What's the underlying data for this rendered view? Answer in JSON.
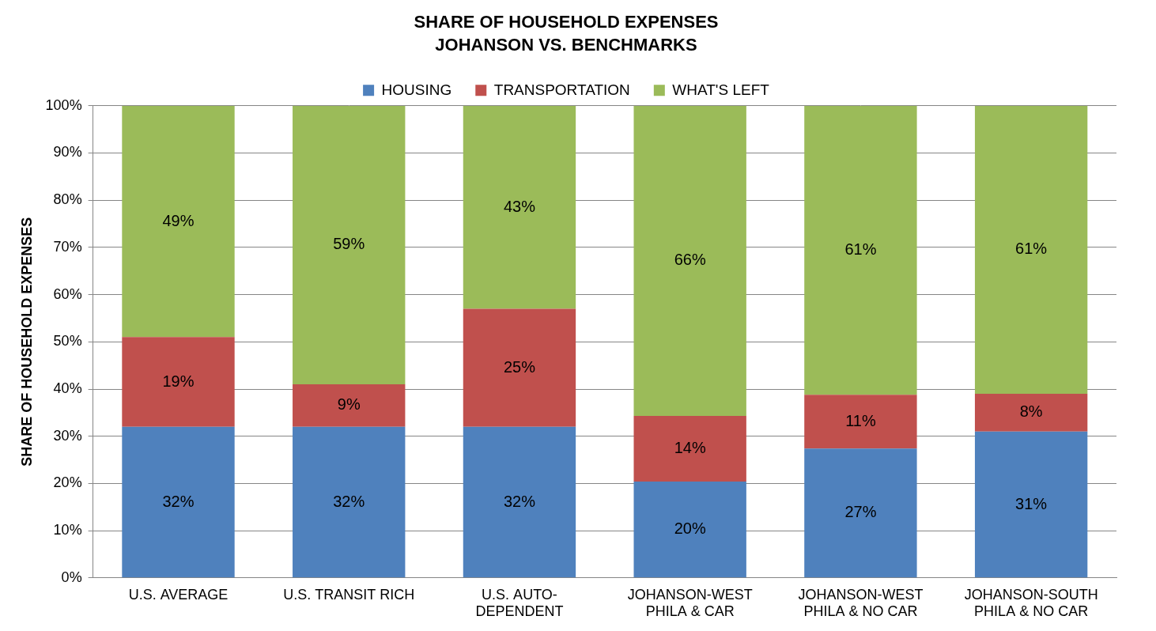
{
  "chart_data": {
    "type": "bar",
    "title": "SHARE OF HOUSEHOLD EXPENSES",
    "subtitle": "JOHANSON VS. BENCHMARKS",
    "y_label": "SHARE OF HOUSEHOLD EXPENSES",
    "categories": [
      "U.S. AVERAGE",
      "U.S. TRANSIT RICH",
      "U.S. AUTO-DEPENDENT",
      "JOHANSON-WEST PHILA & CAR",
      "JOHANSON-WEST PHILA & NO CAR",
      "JOHANSON-SOUTH PHILA & NO CAR"
    ],
    "series": [
      {
        "name": "HOUSING",
        "color": "#4f81bd",
        "values": [
          32,
          32,
          32,
          20.4,
          27.4,
          31
        ],
        "value_labels": [
          "32%",
          "32%",
          "32%",
          "20%",
          "27%",
          "31%"
        ]
      },
      {
        "name": "TRANSPORTATION",
        "color": "#c0504d",
        "values": [
          19,
          9,
          25,
          13.9,
          11.4,
          8
        ],
        "value_labels": [
          "19%",
          "9%",
          "25%",
          "14%",
          "11%",
          "8%"
        ]
      },
      {
        "name": "WHAT'S LEFT",
        "color": "#9bbb59",
        "values": [
          49,
          59,
          43,
          65.7,
          61.2,
          61
        ],
        "value_labels": [
          "49%",
          "59%",
          "43%",
          "66%",
          "61%",
          "61%"
        ]
      }
    ],
    "ylim": [
      0,
      100
    ],
    "yticks": [
      {
        "value": 0,
        "label": "0%"
      },
      {
        "value": 10,
        "label": "10%"
      },
      {
        "value": 20,
        "label": "20%"
      },
      {
        "value": 30,
        "label": "30%"
      },
      {
        "value": 40,
        "label": "40%"
      },
      {
        "value": 50,
        "label": "50%"
      },
      {
        "value": 60,
        "label": "60%"
      },
      {
        "value": 70,
        "label": "70%"
      },
      {
        "value": 80,
        "label": "80%"
      },
      {
        "value": 90,
        "label": "90%"
      },
      {
        "value": 100,
        "label": "100%"
      }
    ],
    "stacked": true,
    "grid": true,
    "legend": "top",
    "data_labels": true
  }
}
